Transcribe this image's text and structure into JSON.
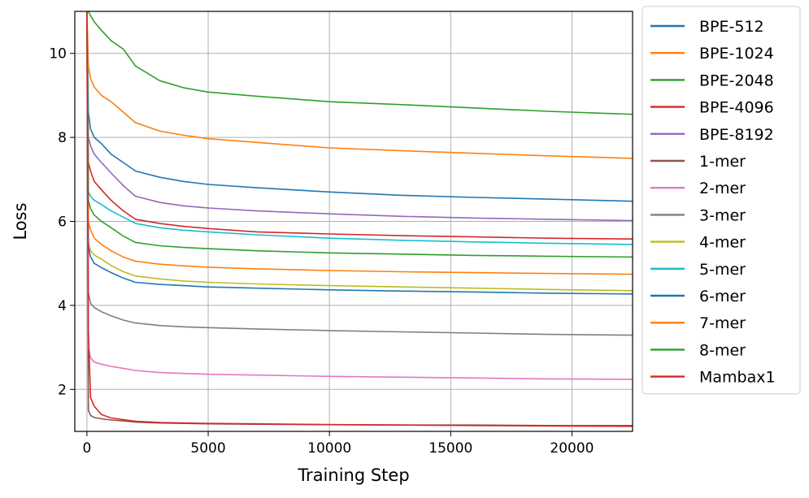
{
  "chart_data": {
    "type": "line",
    "title": "",
    "xlabel": "Training Step",
    "ylabel": "Loss",
    "xlim": [
      -500,
      22500
    ],
    "ylim": [
      1.0,
      11.0
    ],
    "xticks": [
      0,
      5000,
      10000,
      15000,
      20000
    ],
    "xtick_labels": [
      "0",
      "5000",
      "10000",
      "15000",
      "20000"
    ],
    "yticks": [
      2,
      4,
      6,
      8,
      10
    ],
    "ytick_labels": [
      "2",
      "4",
      "6",
      "8",
      "10"
    ],
    "grid": true,
    "legend_position": "outside-right",
    "x": [
      0,
      60,
      150,
      300,
      600,
      1000,
      1500,
      2000,
      3000,
      4000,
      5000,
      7000,
      10000,
      13000,
      16000,
      19000,
      22500
    ],
    "series": [
      {
        "name": "BPE-512",
        "color": "#1f77b4",
        "values": [
          11.0,
          8.6,
          8.2,
          8.0,
          7.85,
          7.6,
          7.4,
          7.2,
          7.05,
          6.95,
          6.88,
          6.8,
          6.7,
          6.62,
          6.57,
          6.53,
          6.48
        ]
      },
      {
        "name": "BPE-1024",
        "color": "#ff7f0e",
        "values": [
          11.0,
          9.7,
          9.4,
          9.2,
          9.0,
          8.85,
          8.6,
          8.35,
          8.15,
          8.05,
          7.97,
          7.88,
          7.75,
          7.68,
          7.62,
          7.56,
          7.5
        ]
      },
      {
        "name": "BPE-2048",
        "color": "#2ca02c",
        "values": [
          11.0,
          11.0,
          10.9,
          10.75,
          10.55,
          10.3,
          10.1,
          9.7,
          9.35,
          9.18,
          9.08,
          8.98,
          8.85,
          8.78,
          8.7,
          8.62,
          8.55
        ]
      },
      {
        "name": "BPE-4096",
        "color": "#d62728",
        "values": [
          11.0,
          7.4,
          7.2,
          6.95,
          6.75,
          6.5,
          6.25,
          6.05,
          5.95,
          5.88,
          5.83,
          5.75,
          5.7,
          5.66,
          5.63,
          5.6,
          5.58
        ]
      },
      {
        "name": "BPE-8192",
        "color": "#9467bd",
        "values": [
          11.0,
          8.0,
          7.8,
          7.6,
          7.4,
          7.15,
          6.85,
          6.6,
          6.45,
          6.37,
          6.32,
          6.25,
          6.18,
          6.12,
          6.08,
          6.05,
          6.02
        ]
      },
      {
        "name": "1-mer",
        "color": "#8c564b",
        "values": [
          11.0,
          1.5,
          1.38,
          1.33,
          1.3,
          1.27,
          1.25,
          1.22,
          1.2,
          1.19,
          1.18,
          1.17,
          1.16,
          1.15,
          1.15,
          1.14,
          1.14
        ]
      },
      {
        "name": "2-mer",
        "color": "#e377c2",
        "values": [
          11.0,
          3.0,
          2.75,
          2.65,
          2.6,
          2.55,
          2.5,
          2.45,
          2.4,
          2.38,
          2.36,
          2.34,
          2.31,
          2.29,
          2.27,
          2.25,
          2.24
        ]
      },
      {
        "name": "3-mer",
        "color": "#7f7f7f",
        "values": [
          11.0,
          4.3,
          4.05,
          3.95,
          3.85,
          3.75,
          3.65,
          3.58,
          3.52,
          3.49,
          3.47,
          3.44,
          3.4,
          3.37,
          3.34,
          3.31,
          3.29
        ]
      },
      {
        "name": "4-mer",
        "color": "#bcbd22",
        "values": [
          11.0,
          5.5,
          5.3,
          5.2,
          5.1,
          4.95,
          4.8,
          4.7,
          4.63,
          4.58,
          4.55,
          4.51,
          4.47,
          4.44,
          4.41,
          4.38,
          4.35
        ]
      },
      {
        "name": "5-mer",
        "color": "#17becf",
        "values": [
          11.0,
          6.7,
          6.6,
          6.5,
          6.4,
          6.25,
          6.1,
          5.95,
          5.85,
          5.79,
          5.75,
          5.68,
          5.6,
          5.55,
          5.51,
          5.48,
          5.45
        ]
      },
      {
        "name": "6-mer",
        "color": "#1f77b4",
        "values": [
          11.0,
          5.4,
          5.15,
          5.0,
          4.9,
          4.78,
          4.65,
          4.55,
          4.5,
          4.47,
          4.44,
          4.41,
          4.37,
          4.34,
          4.32,
          4.29,
          4.27
        ]
      },
      {
        "name": "7-mer",
        "color": "#ff7f0e",
        "values": [
          11.0,
          6.0,
          5.8,
          5.6,
          5.45,
          5.3,
          5.15,
          5.05,
          4.98,
          4.94,
          4.91,
          4.87,
          4.83,
          4.8,
          4.78,
          4.76,
          4.74
        ]
      },
      {
        "name": "8-mer",
        "color": "#2ca02c",
        "values": [
          11.0,
          6.5,
          6.3,
          6.15,
          6.0,
          5.85,
          5.65,
          5.5,
          5.42,
          5.38,
          5.35,
          5.3,
          5.25,
          5.22,
          5.19,
          5.17,
          5.15
        ]
      },
      {
        "name": "Mambax1",
        "color": "#d62728",
        "values": [
          11.0,
          3.4,
          1.8,
          1.6,
          1.4,
          1.32,
          1.28,
          1.24,
          1.21,
          1.2,
          1.19,
          1.18,
          1.16,
          1.15,
          1.14,
          1.13,
          1.12
        ]
      }
    ]
  }
}
